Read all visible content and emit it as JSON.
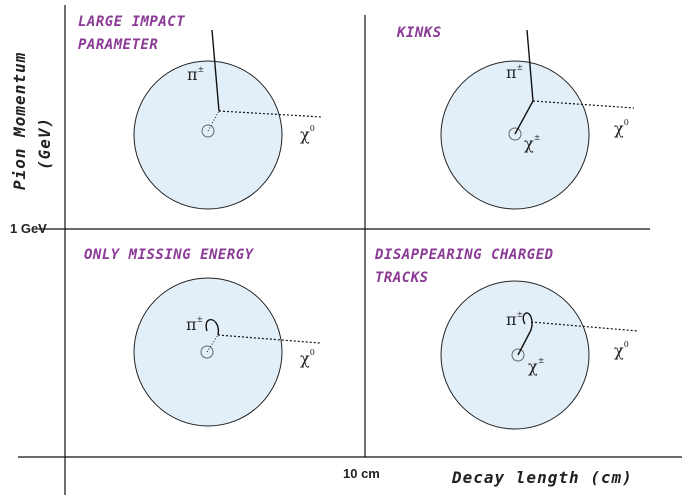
{
  "axes": {
    "y_label_lines": [
      "Pion Momentum",
      "(GeV)"
    ],
    "x_label": "Decay length (cm)",
    "y_tick": "1 GeV",
    "x_tick": "10 cm"
  },
  "symbols": {
    "pi": "π",
    "chi": "χ",
    "charged": "±",
    "neutral": "0"
  },
  "quadrants": [
    {
      "title_lines": [
        "LARGE IMPACT",
        "PARAMETER"
      ]
    },
    {
      "title_lines": [
        "KINKS"
      ]
    },
    {
      "title_lines": [
        "ONLY MISSING ENERGY"
      ]
    },
    {
      "title_lines": [
        "DISAPPEARING CHARGED",
        "TRACKS"
      ]
    }
  ]
}
